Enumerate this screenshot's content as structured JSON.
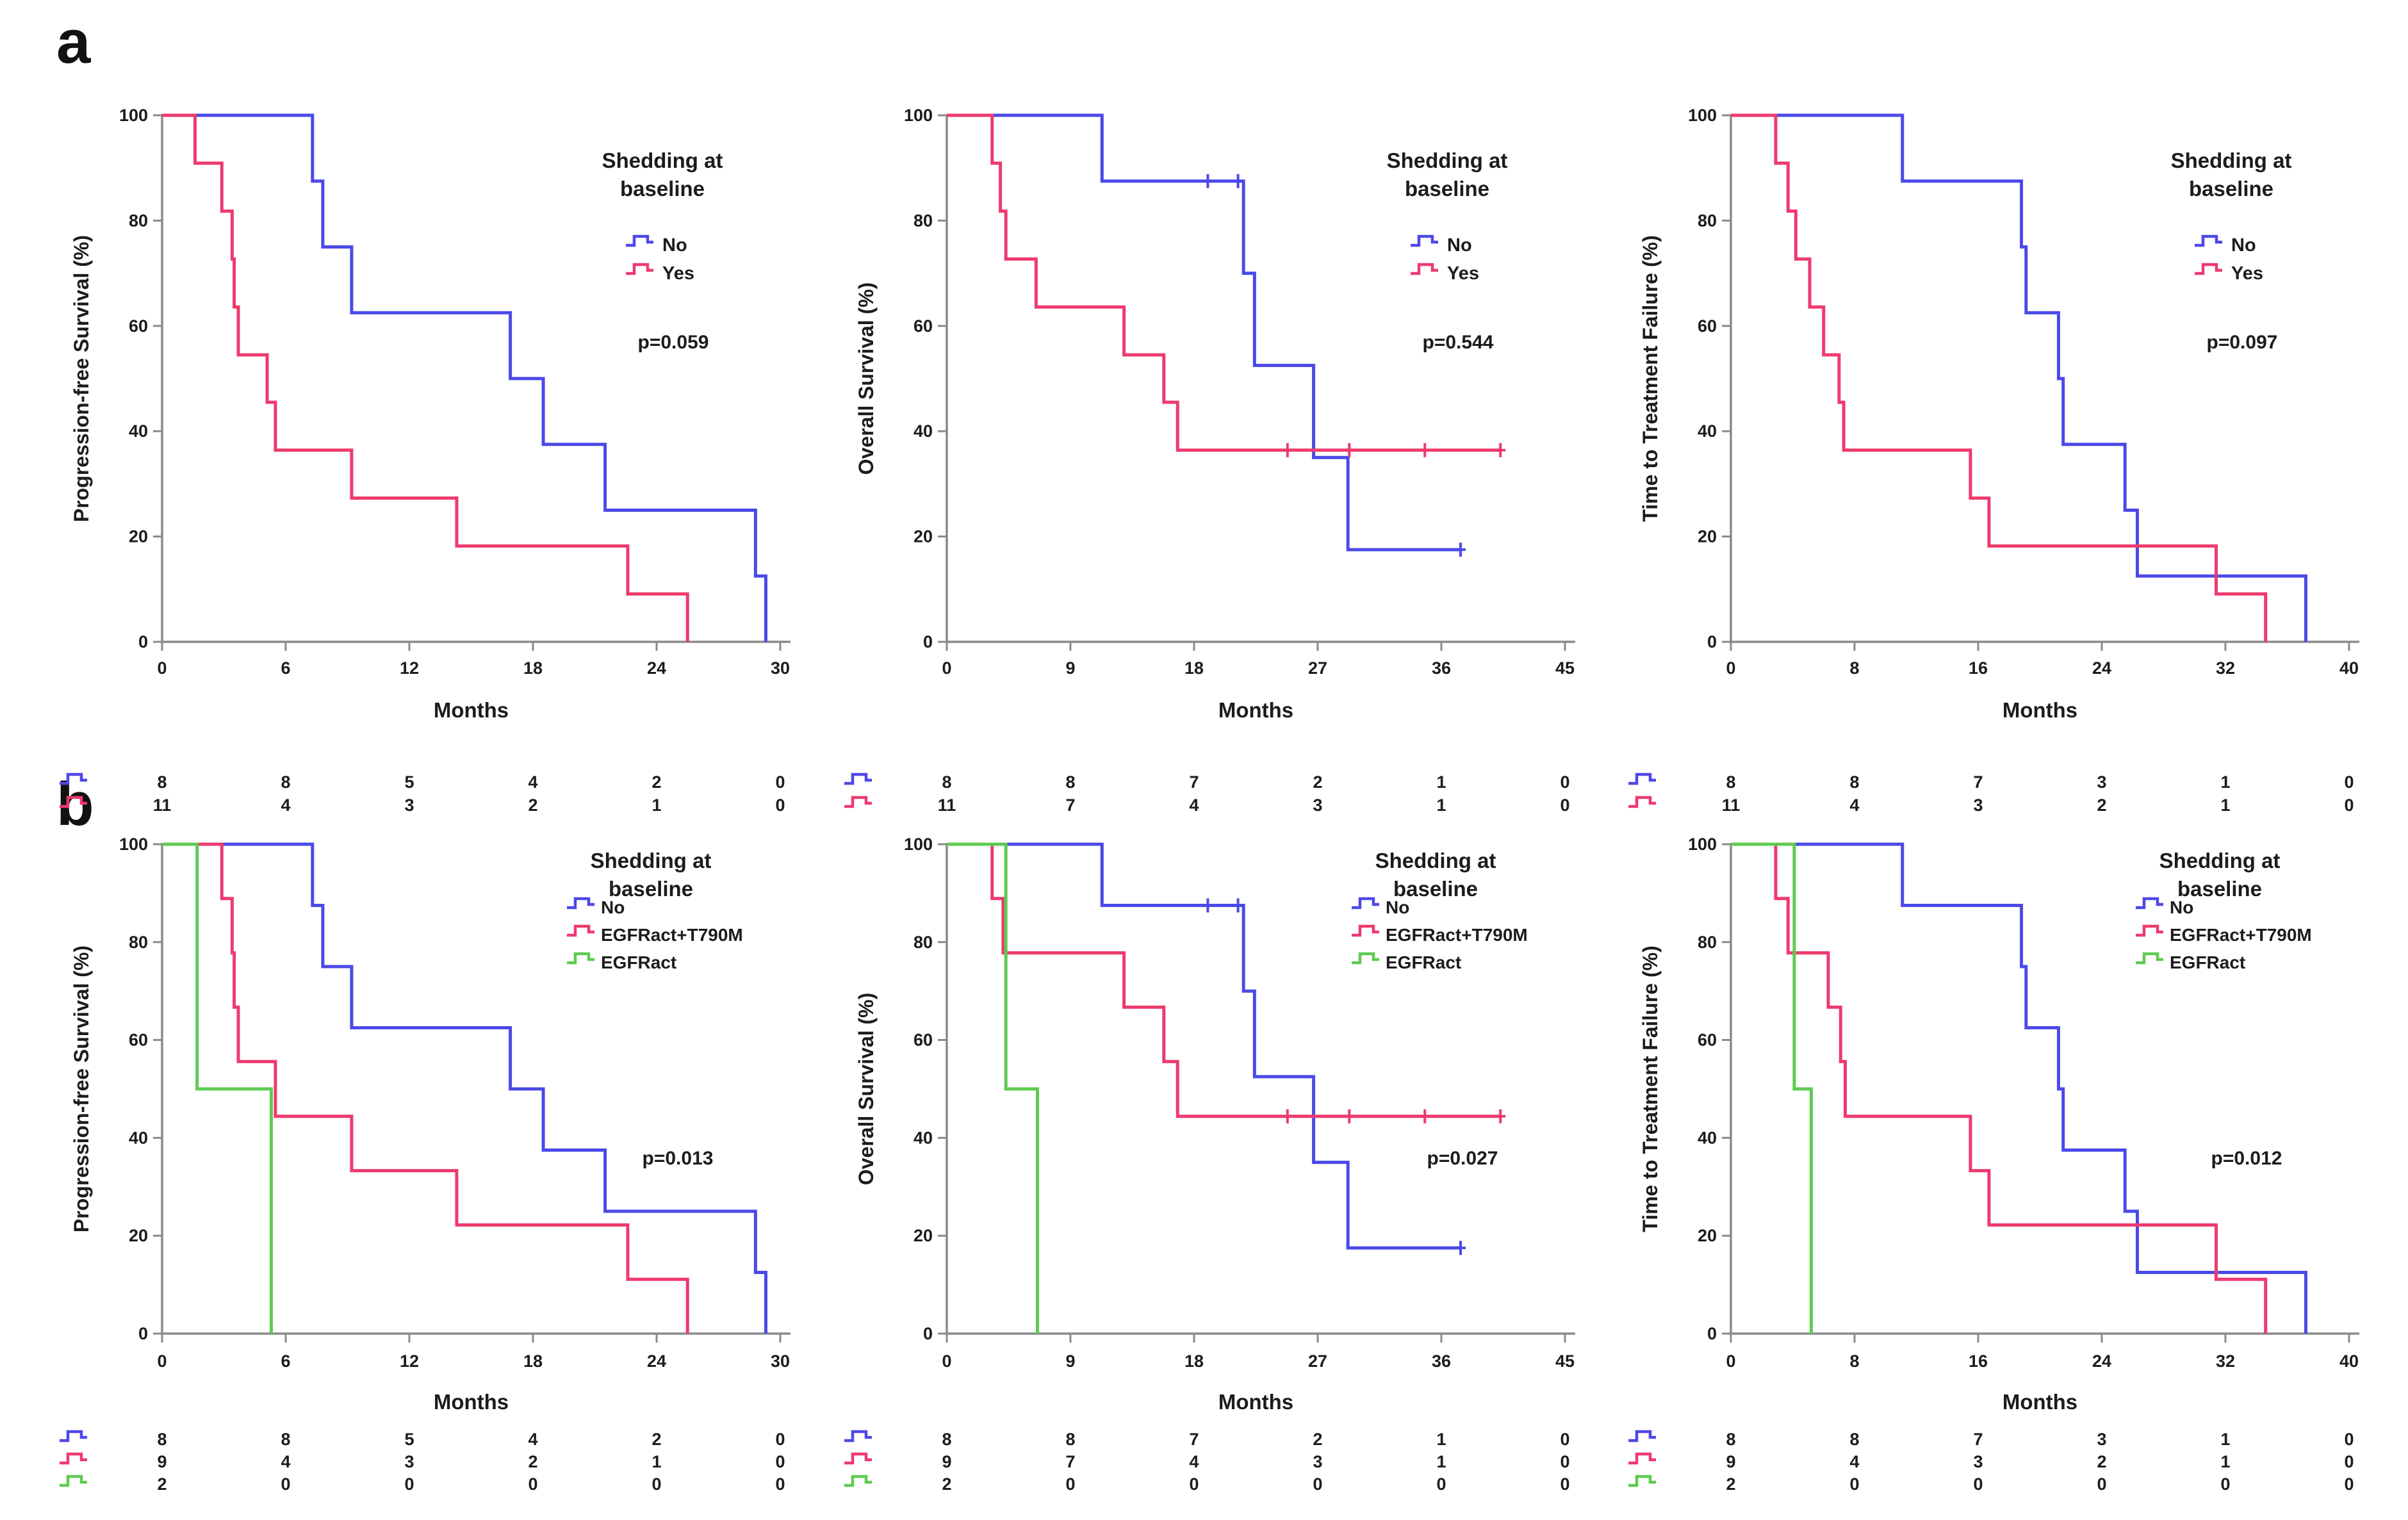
{
  "panels": [
    {
      "label": "a"
    },
    {
      "label": "b"
    }
  ],
  "style": {
    "axis_color": "#8a8a8a",
    "text_color": "#1c1c1c",
    "series_colors": {
      "no": "#4b49e8",
      "yes": "#ee3a6e",
      "egfract_t790m": "#ee3a6e",
      "egfract": "#5dcb51"
    }
  },
  "chart_data": [
    {
      "type": "line",
      "subtype": "kaplan-meier-step",
      "panel": "a",
      "ylabel": "Progression-free Survival (%)",
      "xlabel": "Months",
      "xmax": 30,
      "xticks": [
        0,
        6,
        12,
        18,
        24,
        30
      ],
      "yticks": [
        0,
        20,
        40,
        60,
        80,
        100
      ],
      "ylim": [
        0,
        100
      ],
      "legend_title_lines": [
        "Shedding at",
        "baseline"
      ],
      "legend_position": "top-right",
      "p_value": "p=0.059",
      "series": [
        {
          "name": "No",
          "color": "#4b49e8",
          "events": [
            [
              7.3,
              87.5
            ],
            [
              7.8,
              75
            ],
            [
              9.2,
              62.5
            ],
            [
              16.9,
              50
            ],
            [
              18.5,
              37.5
            ],
            [
              21.5,
              25
            ],
            [
              28.8,
              12.5
            ],
            [
              29.3,
              0
            ]
          ],
          "end": 29.3,
          "censors": [],
          "at_risk": [
            8,
            8,
            5,
            4,
            2,
            0
          ]
        },
        {
          "name": "Yes",
          "color": "#ee3a6e",
          "events": [
            [
              1.6,
              90.9
            ],
            [
              2.9,
              81.8
            ],
            [
              3.4,
              72.7
            ],
            [
              3.5,
              63.6
            ],
            [
              3.7,
              54.5
            ],
            [
              5.1,
              45.5
            ],
            [
              5.5,
              36.4
            ],
            [
              9.2,
              27.3
            ],
            [
              14.3,
              18.2
            ],
            [
              22.6,
              9.1
            ],
            [
              25.5,
              0
            ]
          ],
          "end": 25.5,
          "censors": [],
          "at_risk": [
            11,
            4,
            3,
            2,
            1,
            0
          ]
        }
      ]
    },
    {
      "type": "line",
      "subtype": "kaplan-meier-step",
      "panel": "a",
      "ylabel": "Overall Survival (%)",
      "xlabel": "Months",
      "xmax": 45,
      "xticks": [
        0,
        9,
        18,
        27,
        36,
        45
      ],
      "yticks": [
        0,
        20,
        40,
        60,
        80,
        100
      ],
      "ylim": [
        0,
        100
      ],
      "legend_title_lines": [
        "Shedding at",
        "baseline"
      ],
      "legend_position": "top-right",
      "p_value": "p=0.544",
      "series": [
        {
          "name": "No",
          "color": "#4b49e8",
          "events": [
            [
              11.3,
              87.5
            ],
            [
              21.6,
              70
            ],
            [
              22.4,
              52.5
            ],
            [
              26.7,
              35
            ],
            [
              29.2,
              17.5
            ]
          ],
          "end": 37.4,
          "censors": [
            [
              19,
              87.5
            ],
            [
              21.2,
              87.5
            ],
            [
              37.4,
              17.5
            ]
          ],
          "at_risk": [
            8,
            8,
            7,
            2,
            1,
            0
          ]
        },
        {
          "name": "Yes",
          "color": "#ee3a6e",
          "events": [
            [
              3.3,
              90.9
            ],
            [
              3.9,
              81.8
            ],
            [
              4.3,
              72.7
            ],
            [
              6.5,
              63.6
            ],
            [
              12.9,
              54.5
            ],
            [
              15.8,
              45.5
            ],
            [
              16.8,
              36.4
            ]
          ],
          "end": 40.4,
          "censors": [
            [
              24.8,
              36.4
            ],
            [
              29.3,
              36.4
            ],
            [
              34.8,
              36.4
            ],
            [
              40.3,
              36.4
            ]
          ],
          "at_risk": [
            11,
            7,
            4,
            3,
            1,
            0
          ]
        }
      ]
    },
    {
      "type": "line",
      "subtype": "kaplan-meier-step",
      "panel": "a",
      "ylabel": "Time to Treatment Failure (%)",
      "xlabel": "Months",
      "xmax": 40,
      "xticks": [
        0,
        8,
        16,
        24,
        32,
        40
      ],
      "yticks": [
        0,
        20,
        40,
        60,
        80,
        100
      ],
      "ylim": [
        0,
        100
      ],
      "legend_title_lines": [
        "Shedding at",
        "baseline"
      ],
      "legend_position": "top-right",
      "p_value": "p=0.097",
      "series": [
        {
          "name": "No",
          "color": "#4b49e8",
          "events": [
            [
              11.1,
              87.5
            ],
            [
              18.8,
              75
            ],
            [
              19.1,
              62.5
            ],
            [
              21.2,
              50
            ],
            [
              21.5,
              37.5
            ],
            [
              25.5,
              25
            ],
            [
              26.3,
              12.5
            ],
            [
              37.2,
              0
            ]
          ],
          "end": 37.2,
          "censors": [],
          "at_risk": [
            8,
            8,
            7,
            3,
            1,
            0
          ]
        },
        {
          "name": "Yes",
          "color": "#ee3a6e",
          "events": [
            [
              2.9,
              90.9
            ],
            [
              3.7,
              81.8
            ],
            [
              4.2,
              72.7
            ],
            [
              5.1,
              63.6
            ],
            [
              6.0,
              54.5
            ],
            [
              7.0,
              45.5
            ],
            [
              7.3,
              36.4
            ],
            [
              15.5,
              27.3
            ],
            [
              16.7,
              18.2
            ],
            [
              31.4,
              9.1
            ],
            [
              34.6,
              0
            ]
          ],
          "end": 34.6,
          "censors": [],
          "at_risk": [
            11,
            4,
            3,
            2,
            1,
            0
          ]
        }
      ]
    },
    {
      "type": "line",
      "subtype": "kaplan-meier-step",
      "panel": "b",
      "ylabel": "Progression-free Survival (%)",
      "xlabel": "Months",
      "xmax": 30,
      "xticks": [
        0,
        6,
        12,
        18,
        24,
        30
      ],
      "yticks": [
        0,
        20,
        40,
        60,
        80,
        100
      ],
      "ylim": [
        0,
        100
      ],
      "legend_title_lines": [
        "Shedding at",
        "baseline"
      ],
      "legend_position": "top-right",
      "p_value": "p=0.013",
      "series": [
        {
          "name": "No",
          "color": "#4b49e8",
          "events": [
            [
              7.3,
              87.5
            ],
            [
              7.8,
              75
            ],
            [
              9.2,
              62.5
            ],
            [
              16.9,
              50
            ],
            [
              18.5,
              37.5
            ],
            [
              21.5,
              25
            ],
            [
              28.8,
              12.5
            ],
            [
              29.3,
              0
            ]
          ],
          "end": 29.3,
          "censors": [],
          "at_risk": [
            8,
            8,
            5,
            4,
            2,
            0
          ]
        },
        {
          "name": "EGFRact+T790M",
          "color": "#ee3a6e",
          "events": [
            [
              2.9,
              88.9
            ],
            [
              3.4,
              77.8
            ],
            [
              3.5,
              66.7
            ],
            [
              3.7,
              55.6
            ],
            [
              5.5,
              44.4
            ],
            [
              9.2,
              33.3
            ],
            [
              14.3,
              22.2
            ],
            [
              22.6,
              11.1
            ],
            [
              25.5,
              0
            ]
          ],
          "end": 25.5,
          "censors": [],
          "at_risk": [
            9,
            4,
            3,
            2,
            1,
            0
          ]
        },
        {
          "name": "EGFRact",
          "color": "#5dcb51",
          "events": [
            [
              1.7,
              50
            ],
            [
              5.3,
              0
            ]
          ],
          "end": 5.3,
          "censors": [],
          "at_risk": [
            2,
            0,
            0,
            0,
            0,
            0
          ]
        }
      ]
    },
    {
      "type": "line",
      "subtype": "kaplan-meier-step",
      "panel": "b",
      "ylabel": "Overall Survival (%)",
      "xlabel": "Months",
      "xmax": 45,
      "xticks": [
        0,
        9,
        18,
        27,
        36,
        45
      ],
      "yticks": [
        0,
        20,
        40,
        60,
        80,
        100
      ],
      "ylim": [
        0,
        100
      ],
      "legend_title_lines": [
        "Shedding at",
        "baseline"
      ],
      "legend_position": "top-right",
      "p_value": "p=0.027",
      "series": [
        {
          "name": "No",
          "color": "#4b49e8",
          "events": [
            [
              11.3,
              87.5
            ],
            [
              21.6,
              70
            ],
            [
              22.4,
              52.5
            ],
            [
              26.7,
              35
            ],
            [
              29.2,
              17.5
            ]
          ],
          "end": 37.4,
          "censors": [
            [
              19,
              87.5
            ],
            [
              21.2,
              87.5
            ],
            [
              37.4,
              17.5
            ]
          ],
          "at_risk": [
            8,
            8,
            7,
            2,
            1,
            0
          ]
        },
        {
          "name": "EGFRact+T790M",
          "color": "#ee3a6e",
          "events": [
            [
              3.3,
              88.9
            ],
            [
              4.1,
              77.8
            ],
            [
              12.9,
              66.7
            ],
            [
              15.8,
              55.6
            ],
            [
              16.8,
              44.4
            ]
          ],
          "end": 40.4,
          "censors": [
            [
              24.8,
              44.4
            ],
            [
              29.3,
              44.4
            ],
            [
              34.8,
              44.4
            ],
            [
              40.3,
              44.4
            ]
          ],
          "at_risk": [
            9,
            7,
            4,
            3,
            1,
            0
          ]
        },
        {
          "name": "EGFRact",
          "color": "#5dcb51",
          "events": [
            [
              4.3,
              50
            ],
            [
              6.6,
              0
            ]
          ],
          "end": 6.6,
          "censors": [],
          "at_risk": [
            2,
            0,
            0,
            0,
            0,
            0
          ]
        }
      ]
    },
    {
      "type": "line",
      "subtype": "kaplan-meier-step",
      "panel": "b",
      "ylabel": "Time to Treatment Failure (%)",
      "xlabel": "Months",
      "xmax": 40,
      "xticks": [
        0,
        8,
        16,
        24,
        32,
        40
      ],
      "yticks": [
        0,
        20,
        40,
        60,
        80,
        100
      ],
      "ylim": [
        0,
        100
      ],
      "legend_title_lines": [
        "Shedding at",
        "baseline"
      ],
      "legend_position": "top-right",
      "p_value": "p=0.012",
      "series": [
        {
          "name": "No",
          "color": "#4b49e8",
          "events": [
            [
              11.1,
              87.5
            ],
            [
              18.8,
              75
            ],
            [
              19.1,
              62.5
            ],
            [
              21.2,
              50
            ],
            [
              21.5,
              37.5
            ],
            [
              25.5,
              25
            ],
            [
              26.3,
              12.5
            ],
            [
              37.2,
              0
            ]
          ],
          "end": 37.2,
          "censors": [],
          "at_risk": [
            8,
            8,
            7,
            3,
            1,
            0
          ]
        },
        {
          "name": "EGFRact+T790M",
          "color": "#ee3a6e",
          "events": [
            [
              2.9,
              88.9
            ],
            [
              3.7,
              77.8
            ],
            [
              6.3,
              66.7
            ],
            [
              7.1,
              55.6
            ],
            [
              7.4,
              44.4
            ],
            [
              15.5,
              33.3
            ],
            [
              16.7,
              22.2
            ],
            [
              31.4,
              11.1
            ],
            [
              34.6,
              0
            ]
          ],
          "end": 34.6,
          "censors": [],
          "at_risk": [
            9,
            4,
            3,
            2,
            1,
            0
          ]
        },
        {
          "name": "EGFRact",
          "color": "#5dcb51",
          "events": [
            [
              4.1,
              50
            ],
            [
              5.2,
              0
            ]
          ],
          "end": 5.2,
          "censors": [],
          "at_risk": [
            2,
            0,
            0,
            0,
            0,
            0
          ]
        }
      ]
    }
  ]
}
